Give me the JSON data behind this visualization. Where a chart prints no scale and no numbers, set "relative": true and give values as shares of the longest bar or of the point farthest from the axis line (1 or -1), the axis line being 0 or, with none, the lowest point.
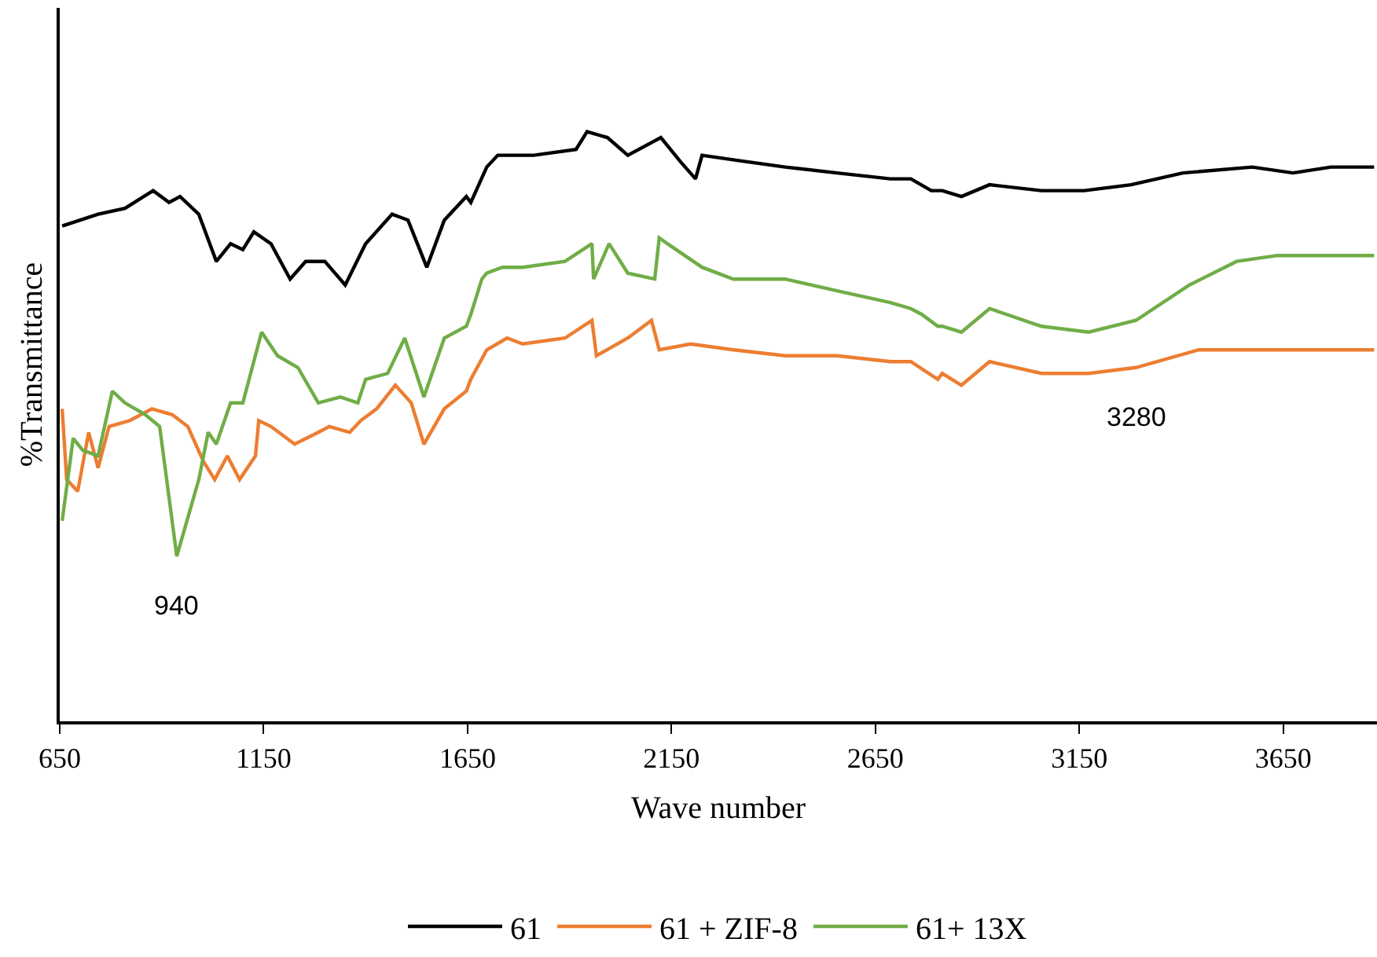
{
  "chart_data": {
    "type": "line",
    "xlabel": "Wave number",
    "ylabel": "%Transmittance",
    "relative": true,
    "xlim": [
      650,
      3880
    ],
    "xticks": [
      650,
      1150,
      1650,
      2150,
      2650,
      3150,
      3650
    ],
    "tick_labels": "x",
    "legend": "bottom",
    "marker": "none",
    "line_style": "solid",
    "annotations": [
      {
        "text": "940",
        "x": 937,
        "y": 0.28
      },
      {
        "text": "3280",
        "x": 3289,
        "y": 0.6
      }
    ],
    "series": [
      {
        "name": "61",
        "color": "#000000",
        "x": [
          656,
          744,
          810,
          879,
          918,
          945,
          991,
          1034,
          1069,
          1099,
          1126,
          1168,
          1215,
          1253,
          1300,
          1350,
          1400,
          1465,
          1504,
          1550,
          1593,
          1647,
          1658,
          1697,
          1724,
          1762,
          1812,
          1916,
          1943,
          1993,
          2043,
          2124,
          2171,
          2209,
          2225,
          2325,
          2429,
          2556,
          2687,
          2737,
          2787,
          2814,
          2861,
          2930,
          3057,
          3162,
          3277,
          3404,
          3574,
          3674,
          3767,
          3873
        ],
        "values": [
          0.84,
          0.86,
          0.87,
          0.9,
          0.88,
          0.89,
          0.86,
          0.78,
          0.81,
          0.8,
          0.83,
          0.81,
          0.75,
          0.78,
          0.78,
          0.74,
          0.81,
          0.86,
          0.85,
          0.77,
          0.85,
          0.89,
          0.88,
          0.94,
          0.96,
          0.96,
          0.96,
          0.97,
          1.0,
          0.99,
          0.96,
          0.99,
          0.95,
          0.92,
          0.96,
          0.95,
          0.94,
          0.93,
          0.92,
          0.92,
          0.9,
          0.9,
          0.89,
          0.91,
          0.9,
          0.9,
          0.91,
          0.93,
          0.94,
          0.93,
          0.94,
          0.94
        ]
      },
      {
        "name": "61 + ZIF-8",
        "color": "#ed7d31",
        "x": [
          656,
          667,
          694,
          721,
          744,
          771,
          822,
          876,
          926,
          964,
          1003,
          1030,
          1061,
          1091,
          1130,
          1138,
          1168,
          1226,
          1284,
          1311,
          1361,
          1388,
          1427,
          1473,
          1512,
          1543,
          1593,
          1647,
          1658,
          1697,
          1747,
          1785,
          1889,
          1955,
          1966,
          2043,
          2101,
          2120,
          2197,
          2302,
          2429,
          2556,
          2687,
          2737,
          2803,
          2814,
          2861,
          2930,
          3057,
          3173,
          3289,
          3443,
          3574,
          3873
        ],
        "values": [
          0.53,
          0.41,
          0.39,
          0.49,
          0.43,
          0.5,
          0.51,
          0.53,
          0.52,
          0.5,
          0.44,
          0.41,
          0.45,
          0.41,
          0.45,
          0.51,
          0.5,
          0.47,
          0.49,
          0.5,
          0.49,
          0.51,
          0.53,
          0.57,
          0.54,
          0.47,
          0.53,
          0.56,
          0.58,
          0.63,
          0.65,
          0.64,
          0.65,
          0.68,
          0.62,
          0.65,
          0.68,
          0.63,
          0.64,
          0.63,
          0.62,
          0.62,
          0.61,
          0.61,
          0.58,
          0.59,
          0.57,
          0.61,
          0.59,
          0.59,
          0.6,
          0.63,
          0.63,
          0.63
        ]
      },
      {
        "name": "61+ 13X",
        "color": "#70ad47",
        "x": [
          656,
          683,
          706,
          744,
          779,
          810,
          860,
          895,
          937,
          991,
          1014,
          1034,
          1069,
          1099,
          1145,
          1184,
          1234,
          1284,
          1338,
          1381,
          1400,
          1454,
          1496,
          1543,
          1593,
          1647,
          1658,
          1685,
          1697,
          1735,
          1785,
          1889,
          1955,
          1959,
          1997,
          2043,
          2109,
          2120,
          2140,
          2225,
          2302,
          2429,
          2556,
          2687,
          2737,
          2764,
          2803,
          2814,
          2861,
          2930,
          3057,
          3173,
          3289,
          3420,
          3536,
          3636,
          3767,
          3873
        ],
        "values": [
          0.34,
          0.48,
          0.46,
          0.45,
          0.56,
          0.54,
          0.52,
          0.5,
          0.28,
          0.41,
          0.49,
          0.47,
          0.54,
          0.54,
          0.66,
          0.62,
          0.6,
          0.54,
          0.55,
          0.54,
          0.58,
          0.59,
          0.65,
          0.55,
          0.65,
          0.67,
          0.69,
          0.75,
          0.76,
          0.77,
          0.77,
          0.78,
          0.81,
          0.75,
          0.81,
          0.76,
          0.75,
          0.82,
          0.81,
          0.77,
          0.75,
          0.75,
          0.73,
          0.71,
          0.7,
          0.69,
          0.67,
          0.67,
          0.66,
          0.7,
          0.67,
          0.66,
          0.68,
          0.74,
          0.78,
          0.79,
          0.79,
          0.79
        ]
      }
    ]
  }
}
